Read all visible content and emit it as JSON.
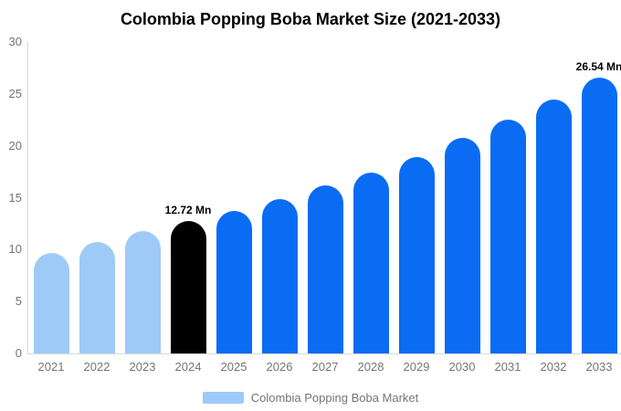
{
  "chart_data": {
    "type": "bar",
    "title": "Colombia Popping Boba Market Size (2021-2033)",
    "xlabel": "",
    "ylabel": "",
    "ylim": [
      0,
      30
    ],
    "yticks": [
      0,
      5,
      10,
      15,
      20,
      25,
      30
    ],
    "grid": false,
    "legend_position": "bottom",
    "categories": [
      "2021",
      "2022",
      "2023",
      "2024",
      "2025",
      "2026",
      "2027",
      "2028",
      "2029",
      "2030",
      "2031",
      "2032",
      "2033"
    ],
    "points": [
      {
        "label": "2021",
        "value": 9.7,
        "color": "#9ecaf8",
        "data_label": ""
      },
      {
        "label": "2022",
        "value": 10.7,
        "color": "#9ecaf8",
        "data_label": ""
      },
      {
        "label": "2023",
        "value": 11.8,
        "color": "#9ecaf8",
        "data_label": ""
      },
      {
        "label": "2024",
        "value": 12.72,
        "color": "#000000",
        "data_label": "12.72 Mn"
      },
      {
        "label": "2025",
        "value": 13.7,
        "color": "#0a6cf3",
        "data_label": ""
      },
      {
        "label": "2026",
        "value": 14.9,
        "color": "#0a6cf3",
        "data_label": ""
      },
      {
        "label": "2027",
        "value": 16.2,
        "color": "#0a6cf3",
        "data_label": ""
      },
      {
        "label": "2028",
        "value": 17.4,
        "color": "#0a6cf3",
        "data_label": ""
      },
      {
        "label": "2029",
        "value": 18.9,
        "color": "#0a6cf3",
        "data_label": ""
      },
      {
        "label": "2030",
        "value": 20.8,
        "color": "#0a6cf3",
        "data_label": ""
      },
      {
        "label": "2031",
        "value": 22.5,
        "color": "#0a6cf3",
        "data_label": ""
      },
      {
        "label": "2032",
        "value": 24.5,
        "color": "#0a6cf3",
        "data_label": ""
      },
      {
        "label": "2033",
        "value": 26.54,
        "color": "#0a6cf3",
        "data_label": "26.54 Mn"
      }
    ],
    "colors": {
      "historical": "#9ecaf8",
      "current_year": "#000000",
      "forecast": "#0a6cf3",
      "axis_line": "#d9d9d9",
      "axis_text": "#757575",
      "title_text": "#000000"
    }
  },
  "legend": {
    "label": "Colombia Popping Boba Market",
    "swatch_color": "#9ecaf8"
  }
}
